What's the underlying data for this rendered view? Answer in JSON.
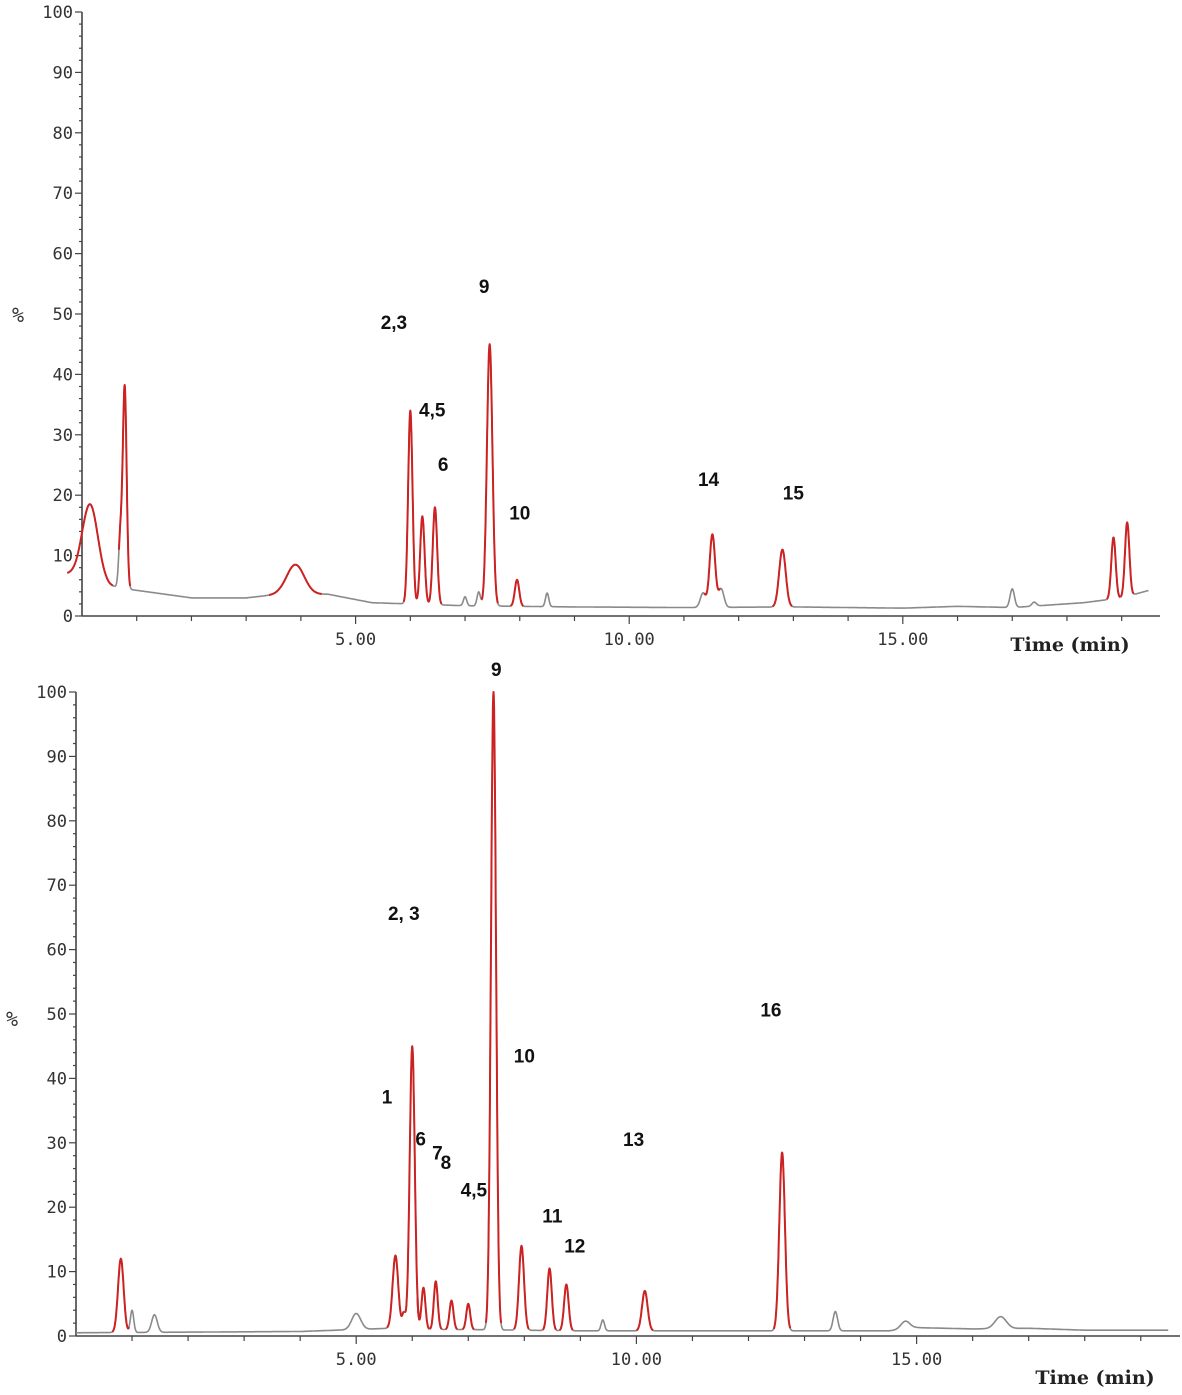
{
  "colors": {
    "baseline": "#8a8a8a",
    "peak": "#cc2222",
    "axis": "#444444",
    "text": "#333333"
  },
  "chart_data": [
    {
      "type": "line",
      "xlabel": "Time (min)",
      "ylabel": "%",
      "xlim": [
        0,
        19.7
      ],
      "ylim": [
        0,
        100
      ],
      "xticks": [
        5.0,
        10.0,
        15.0
      ],
      "xtick_labels": [
        "5.00",
        "10.00",
        "15.00"
      ],
      "yticks": [
        0,
        10,
        20,
        30,
        40,
        50,
        60,
        70,
        80,
        90,
        100
      ],
      "ytick_labels": [
        "0",
        "10",
        "20",
        "30",
        "40",
        "50",
        "60",
        "70",
        "80",
        "90",
        "100"
      ],
      "grid": false,
      "baseline": [
        [
          0,
          7
        ],
        [
          0.5,
          5
        ],
        [
          0.8,
          4.5
        ],
        [
          2,
          3
        ],
        [
          3,
          3
        ],
        [
          3.6,
          3.6
        ],
        [
          4.5,
          3.6
        ],
        [
          5.3,
          2.2
        ],
        [
          7,
          1.7
        ],
        [
          9,
          1.5
        ],
        [
          11,
          1.4
        ],
        [
          13,
          1.5
        ],
        [
          15,
          1.3
        ],
        [
          16,
          1.6
        ],
        [
          17,
          1.4
        ],
        [
          18.3,
          2.2
        ],
        [
          19,
          3
        ],
        [
          19.6,
          4.5
        ]
      ],
      "peaks": [
        {
          "t": 0.15,
          "h": 18.5,
          "w": 0.14,
          "red": true
        },
        {
          "t": 0.7,
          "h": 13,
          "w": 0.03,
          "red": false
        },
        {
          "t": 0.78,
          "h": 38,
          "w": 0.035,
          "red": true
        },
        {
          "t": 3.9,
          "h": 8.5,
          "w": 0.16,
          "red": true
        },
        {
          "t": 6.0,
          "h": 34,
          "w": 0.04,
          "red": true
        },
        {
          "t": 6.22,
          "h": 16.5,
          "w": 0.04,
          "red": true
        },
        {
          "t": 6.45,
          "h": 18,
          "w": 0.04,
          "red": true
        },
        {
          "t": 7.0,
          "h": 3.2,
          "w": 0.03,
          "red": false
        },
        {
          "t": 7.25,
          "h": 4,
          "w": 0.03,
          "red": false
        },
        {
          "t": 7.45,
          "h": 45,
          "w": 0.05,
          "red": true
        },
        {
          "t": 7.95,
          "h": 6,
          "w": 0.04,
          "red": true
        },
        {
          "t": 8.5,
          "h": 3.8,
          "w": 0.03,
          "red": false
        },
        {
          "t": 11.35,
          "h": 3.8,
          "w": 0.05,
          "red": false
        },
        {
          "t": 11.52,
          "h": 13.5,
          "w": 0.05,
          "red": true
        },
        {
          "t": 11.68,
          "h": 4.5,
          "w": 0.05,
          "red": false
        },
        {
          "t": 12.8,
          "h": 11,
          "w": 0.06,
          "red": true
        },
        {
          "t": 17.0,
          "h": 4.5,
          "w": 0.04,
          "red": false
        },
        {
          "t": 17.4,
          "h": 2.3,
          "w": 0.04,
          "red": false
        },
        {
          "t": 18.85,
          "h": 13,
          "w": 0.04,
          "red": true
        },
        {
          "t": 19.1,
          "h": 15.5,
          "w": 0.04,
          "red": true
        }
      ],
      "labels": [
        {
          "text": "2,3",
          "t": 5.7,
          "y": 47.5
        },
        {
          "text": "9",
          "t": 7.35,
          "y": 53.5
        },
        {
          "text": "4,5",
          "t": 6.4,
          "y": 33
        },
        {
          "text": "6",
          "t": 6.6,
          "y": 24
        },
        {
          "text": "10",
          "t": 8.0,
          "y": 16
        },
        {
          "text": "14",
          "t": 11.45,
          "y": 21.5
        },
        {
          "text": "15",
          "t": 13.0,
          "y": 19.3
        }
      ]
    },
    {
      "type": "line",
      "xlabel": "Time (min)",
      "ylabel": "%",
      "xlim": [
        0,
        19.7
      ],
      "ylim": [
        0,
        100
      ],
      "xticks": [
        5.0,
        10.0,
        15.0
      ],
      "xtick_labels": [
        "5.00",
        "10.00",
        "15.00"
      ],
      "yticks": [
        0,
        10,
        20,
        30,
        40,
        50,
        60,
        70,
        80,
        90,
        100
      ],
      "ytick_labels": [
        "0",
        "10",
        "20",
        "30",
        "40",
        "50",
        "60",
        "70",
        "80",
        "90",
        "100"
      ],
      "grid": false,
      "baseline": [
        [
          0,
          0.5
        ],
        [
          2,
          0.6
        ],
        [
          4,
          0.7
        ],
        [
          5.6,
          1.2
        ],
        [
          6,
          1.0
        ],
        [
          7,
          1.0
        ],
        [
          9,
          0.8
        ],
        [
          10,
          0.8
        ],
        [
          13,
          0.8
        ],
        [
          14.5,
          0.8
        ],
        [
          15,
          1.3
        ],
        [
          16,
          1.1
        ],
        [
          17,
          1.2
        ],
        [
          18,
          0.9
        ],
        [
          19.7,
          0.9
        ]
      ],
      "peaks": [
        {
          "t": 0.8,
          "h": 12,
          "w": 0.05,
          "red": true
        },
        {
          "t": 1.0,
          "h": 4,
          "w": 0.03,
          "red": false
        },
        {
          "t": 1.4,
          "h": 3.3,
          "w": 0.05,
          "red": false
        },
        {
          "t": 5.0,
          "h": 3.5,
          "w": 0.08,
          "red": false
        },
        {
          "t": 5.7,
          "h": 12.5,
          "w": 0.05,
          "red": true
        },
        {
          "t": 5.85,
          "h": 3.5,
          "w": 0.03,
          "red": false
        },
        {
          "t": 6.0,
          "h": 45,
          "w": 0.045,
          "red": true
        },
        {
          "t": 6.2,
          "h": 7.5,
          "w": 0.035,
          "red": true
        },
        {
          "t": 6.42,
          "h": 8.5,
          "w": 0.035,
          "red": true
        },
        {
          "t": 6.7,
          "h": 5.5,
          "w": 0.035,
          "red": true
        },
        {
          "t": 7.0,
          "h": 5,
          "w": 0.035,
          "red": true
        },
        {
          "t": 7.45,
          "h": 100,
          "w": 0.045,
          "red": true
        },
        {
          "t": 7.95,
          "h": 14,
          "w": 0.045,
          "red": true
        },
        {
          "t": 8.45,
          "h": 10.5,
          "w": 0.04,
          "red": true
        },
        {
          "t": 8.75,
          "h": 8,
          "w": 0.04,
          "red": true
        },
        {
          "t": 9.4,
          "h": 2.5,
          "w": 0.03,
          "red": false
        },
        {
          "t": 10.15,
          "h": 7,
          "w": 0.05,
          "red": true
        },
        {
          "t": 12.6,
          "h": 28.5,
          "w": 0.05,
          "red": true
        },
        {
          "t": 13.55,
          "h": 3.8,
          "w": 0.04,
          "red": false
        },
        {
          "t": 14.8,
          "h": 2.3,
          "w": 0.08,
          "red": false
        },
        {
          "t": 16.5,
          "h": 3,
          "w": 0.1,
          "red": false
        }
      ],
      "labels": [
        {
          "text": "9",
          "t": 7.5,
          "y": 102.5
        },
        {
          "text": "2, 3",
          "t": 5.85,
          "y": 64.6
        },
        {
          "text": "16",
          "t": 12.4,
          "y": 49.6
        },
        {
          "text": "10",
          "t": 8.0,
          "y": 42.5
        },
        {
          "text": "1",
          "t": 5.55,
          "y": 36.1
        },
        {
          "text": "6",
          "t": 6.15,
          "y": 29.6
        },
        {
          "text": "7",
          "t": 6.45,
          "y": 27.4
        },
        {
          "text": "8",
          "t": 6.6,
          "y": 25.9
        },
        {
          "text": "4,5",
          "t": 7.1,
          "y": 21.7
        },
        {
          "text": "13",
          "t": 9.95,
          "y": 29.5
        },
        {
          "text": "11",
          "t": 8.5,
          "y": 17.6
        },
        {
          "text": "12",
          "t": 8.9,
          "y": 13.0
        }
      ]
    }
  ]
}
